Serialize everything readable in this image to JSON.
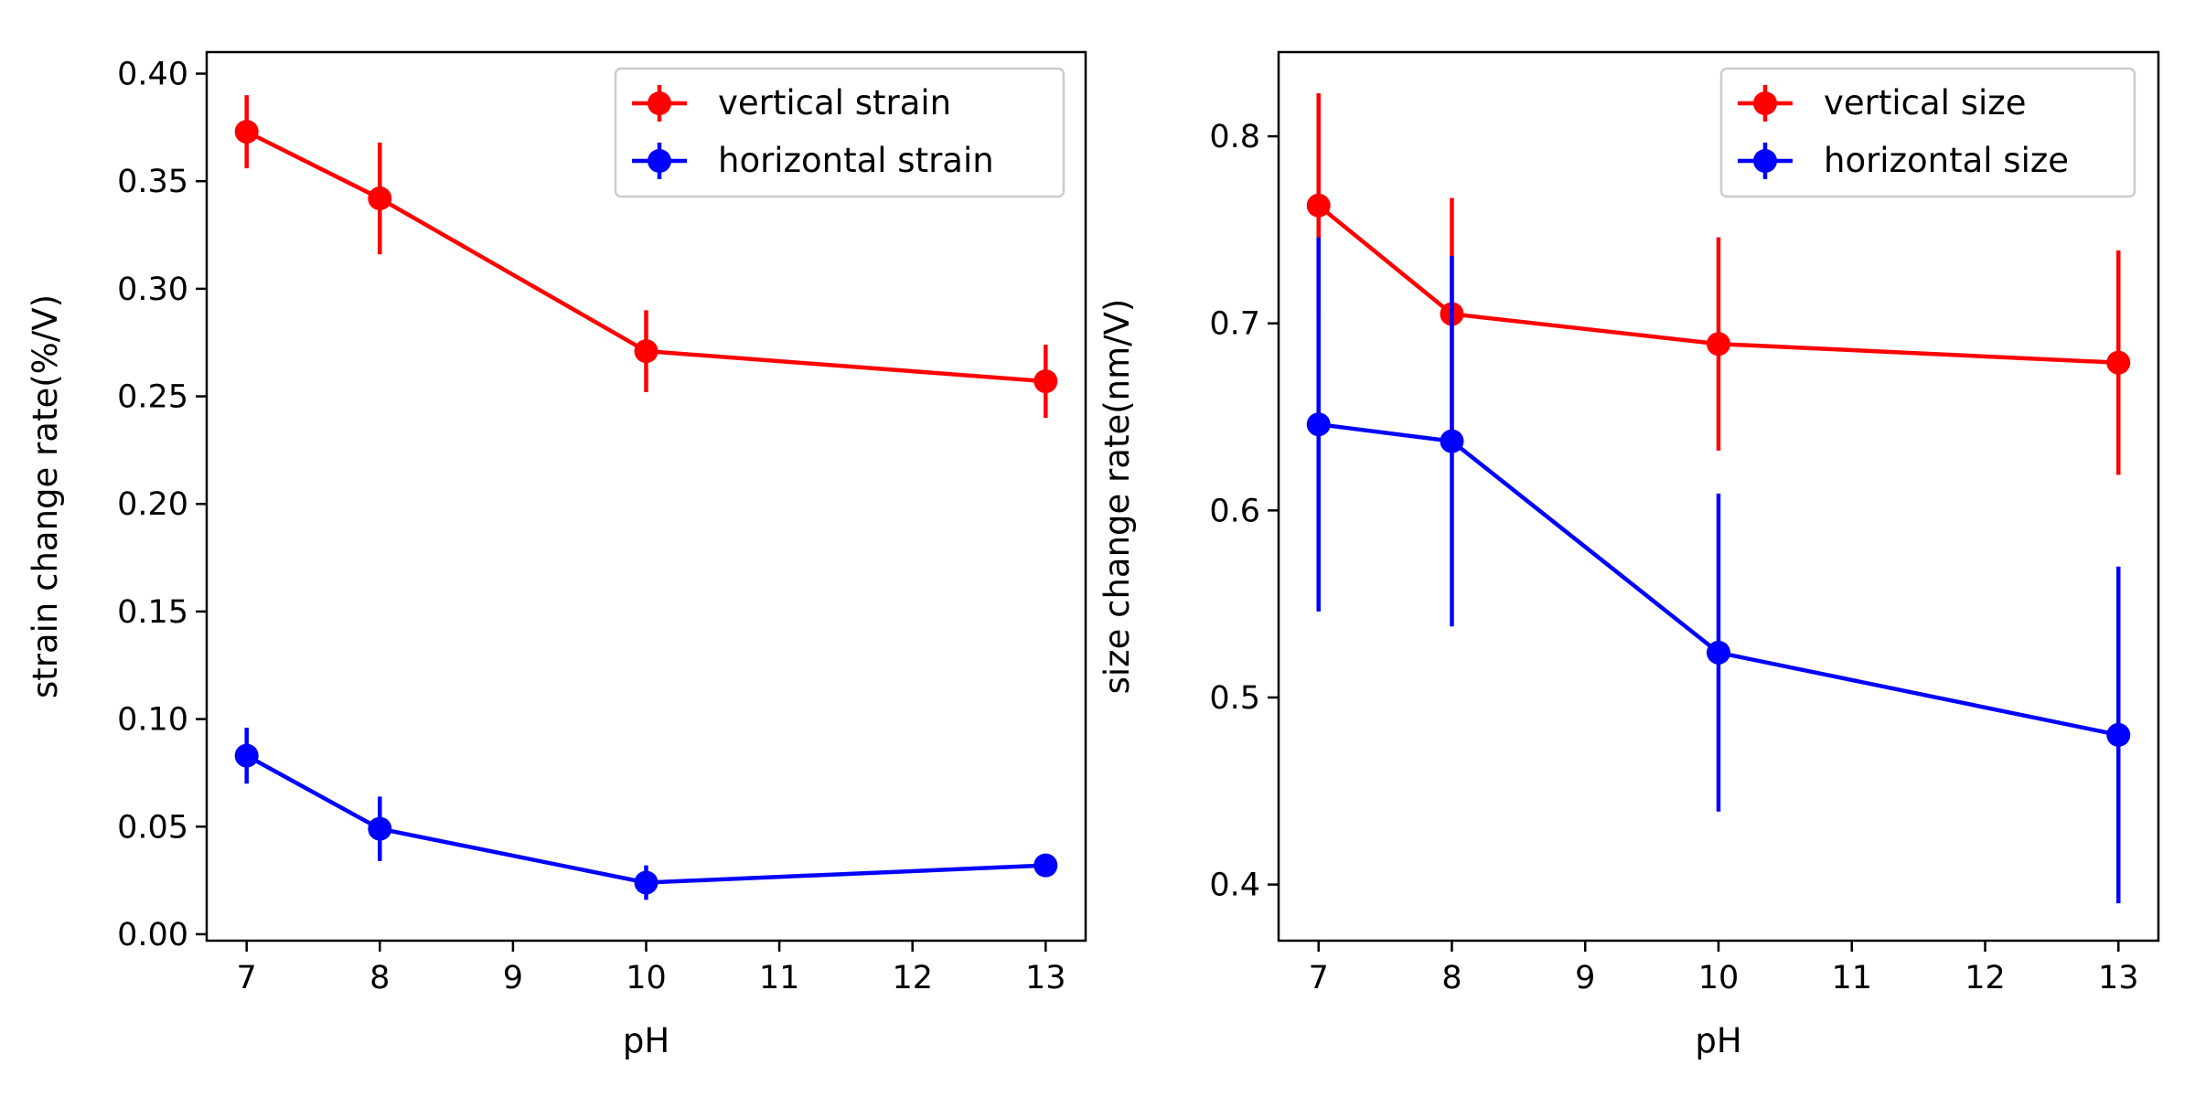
{
  "chart_data": [
    {
      "type": "line",
      "title": "",
      "xlabel": "pH",
      "ylabel": "strain change rate(%/V)",
      "xlim": [
        6.7,
        13.3
      ],
      "ylim": [
        -0.003,
        0.41
      ],
      "x_ticks": [
        7,
        8,
        9,
        10,
        11,
        12,
        13
      ],
      "x_tick_labels": [
        "7",
        "8",
        "9",
        "10",
        "11",
        "12",
        "13"
      ],
      "y_ticks": [
        0.0,
        0.05,
        0.1,
        0.15,
        0.2,
        0.25,
        0.3,
        0.35,
        0.4
      ],
      "y_tick_labels": [
        "0.00",
        "0.05",
        "0.10",
        "0.15",
        "0.20",
        "0.25",
        "0.30",
        "0.35",
        "0.40"
      ],
      "grid": false,
      "legend_position": "top-right",
      "x": [
        7,
        8,
        10,
        13
      ],
      "series": [
        {
          "name": "vertical strain",
          "color": "#ff0000",
          "values": [
            0.373,
            0.342,
            0.271,
            0.257
          ],
          "errors": [
            0.017,
            0.026,
            0.019,
            0.017
          ]
        },
        {
          "name": "horizontal strain",
          "color": "#0000ff",
          "values": [
            0.083,
            0.049,
            0.024,
            0.032
          ],
          "errors": [
            0.013,
            0.015,
            0.008,
            0.002
          ]
        }
      ]
    },
    {
      "type": "line",
      "title": "",
      "xlabel": "pH",
      "ylabel": "size change rate(nm/V)",
      "xlim": [
        6.7,
        13.3
      ],
      "ylim": [
        0.37,
        0.845
      ],
      "x_ticks": [
        7,
        8,
        9,
        10,
        11,
        12,
        13
      ],
      "x_tick_labels": [
        "7",
        "8",
        "9",
        "10",
        "11",
        "12",
        "13"
      ],
      "y_ticks": [
        0.4,
        0.5,
        0.6,
        0.7,
        0.8
      ],
      "y_tick_labels": [
        "0.4",
        "0.5",
        "0.6",
        "0.7",
        "0.8"
      ],
      "grid": false,
      "legend_position": "top-right",
      "x": [
        7,
        8,
        10,
        13
      ],
      "series": [
        {
          "name": "vertical size",
          "color": "#ff0000",
          "values": [
            0.763,
            0.705,
            0.689,
            0.679
          ],
          "errors": [
            0.06,
            0.062,
            0.057,
            0.06
          ]
        },
        {
          "name": "horizontal size",
          "color": "#0000ff",
          "values": [
            0.646,
            0.637,
            0.524,
            0.48
          ],
          "errors": [
            0.1,
            0.099,
            0.085,
            0.09
          ]
        }
      ]
    }
  ]
}
